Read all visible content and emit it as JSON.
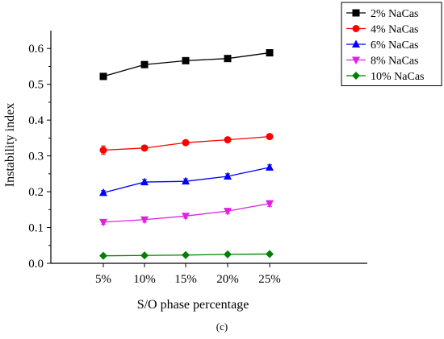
{
  "chart_data": {
    "type": "line",
    "title": "",
    "xlabel": "S/O phase percentage",
    "ylabel": "Instability index",
    "caption": "(c)",
    "categories": [
      "5%",
      "10%",
      "15%",
      "20%",
      "25%"
    ],
    "ylim": [
      0.0,
      0.65
    ],
    "yticks": [
      "0.0",
      "0.1",
      "0.2",
      "0.3",
      "0.4",
      "0.5",
      "0.6"
    ],
    "grid": false,
    "legend_position": "top-right",
    "series": [
      {
        "name": "2% NaCas",
        "color": "#000000",
        "marker": "square",
        "values": [
          0.522,
          0.555,
          0.566,
          0.572,
          0.588
        ],
        "errors": [
          0.005,
          0.006,
          0.005,
          0.006,
          0.006
        ]
      },
      {
        "name": "4% NaCas",
        "color": "#ff0000",
        "marker": "circle",
        "values": [
          0.316,
          0.322,
          0.337,
          0.345,
          0.354
        ],
        "errors": [
          0.012,
          0.005,
          0.005,
          0.005,
          0.005
        ]
      },
      {
        "name": "6% NaCas",
        "color": "#0000ff",
        "marker": "triangle-up",
        "values": [
          0.197,
          0.227,
          0.229,
          0.243,
          0.268
        ],
        "errors": [
          0.006,
          0.007,
          0.007,
          0.007,
          0.007
        ]
      },
      {
        "name": "8% NaCas",
        "color": "#e020e0",
        "marker": "triangle-down",
        "values": [
          0.115,
          0.122,
          0.132,
          0.146,
          0.167
        ],
        "errors": [
          0.006,
          0.007,
          0.006,
          0.007,
          0.008
        ]
      },
      {
        "name": "10% NaCas",
        "color": "#008000",
        "marker": "diamond",
        "values": [
          0.021,
          0.022,
          0.023,
          0.025,
          0.026
        ],
        "errors": [
          0.002,
          0.002,
          0.002,
          0.002,
          0.002
        ]
      }
    ]
  }
}
